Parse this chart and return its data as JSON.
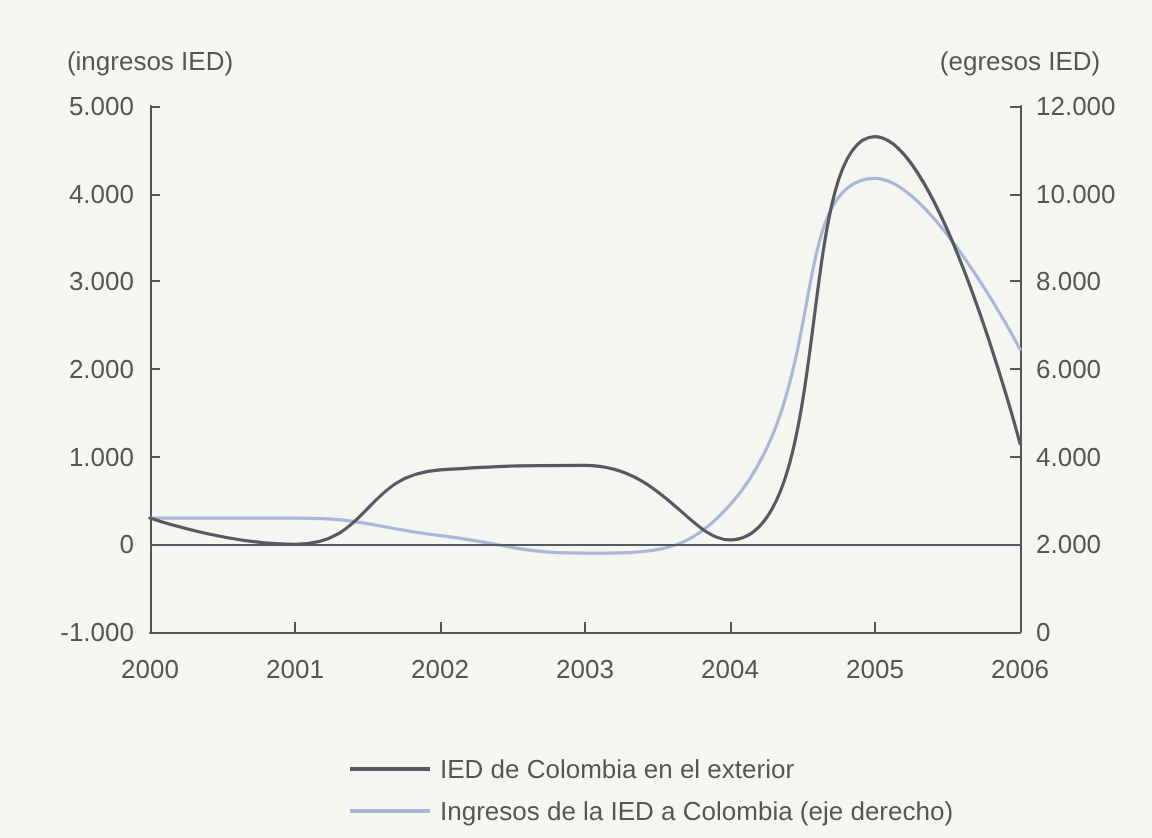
{
  "chart_data": {
    "type": "line",
    "ylabel": "(ingresos IED)",
    "y2label": "(egresos IED)",
    "x": [
      2000,
      2001,
      2002,
      2003,
      2004,
      2005,
      2006
    ],
    "xlim": [
      2000,
      2006
    ],
    "xticks": [
      2000,
      2001,
      2002,
      2003,
      2004,
      2005,
      2006
    ],
    "ylim": [
      -1000,
      5000
    ],
    "yticks": [
      {
        "value": -1000,
        "label": "-1.000"
      },
      0,
      {
        "value": 1000,
        "label": "1.000"
      },
      {
        "value": 2000,
        "label": "2.000"
      },
      {
        "value": 3000,
        "label": "3.000"
      },
      {
        "value": 4000,
        "label": "4.000"
      },
      {
        "value": 5000,
        "label": "5.000"
      }
    ],
    "y2lim": [
      0,
      12000
    ],
    "y2ticks": [
      0,
      {
        "value": 2000,
        "label": "2.000"
      },
      {
        "value": 4000,
        "label": "4.000"
      },
      {
        "value": 6000,
        "label": "6.000"
      },
      {
        "value": 8000,
        "label": "8.000"
      },
      {
        "value": 10000,
        "label": "10.000"
      },
      {
        "value": 12000,
        "label": "12.000"
      }
    ],
    "series": [
      {
        "name": "IED de Colombia en el exterior",
        "color": "#555a62",
        "values": [
          300,
          0,
          850,
          900,
          50,
          4650,
          1150
        ]
      },
      {
        "name": "Ingresos de la IED a Colombia (eje derecho)",
        "color": "#a9b8d8",
        "axis": "y2",
        "values": [
          2600,
          2600,
          2200,
          1800,
          2900,
          10350,
          6450
        ]
      }
    ],
    "ref_lines": [
      {
        "axis": "y",
        "value": 0,
        "color": "#555a62"
      }
    ],
    "grid": false,
    "legend": "bottom",
    "marker": "none",
    "line_style": "solid"
  }
}
